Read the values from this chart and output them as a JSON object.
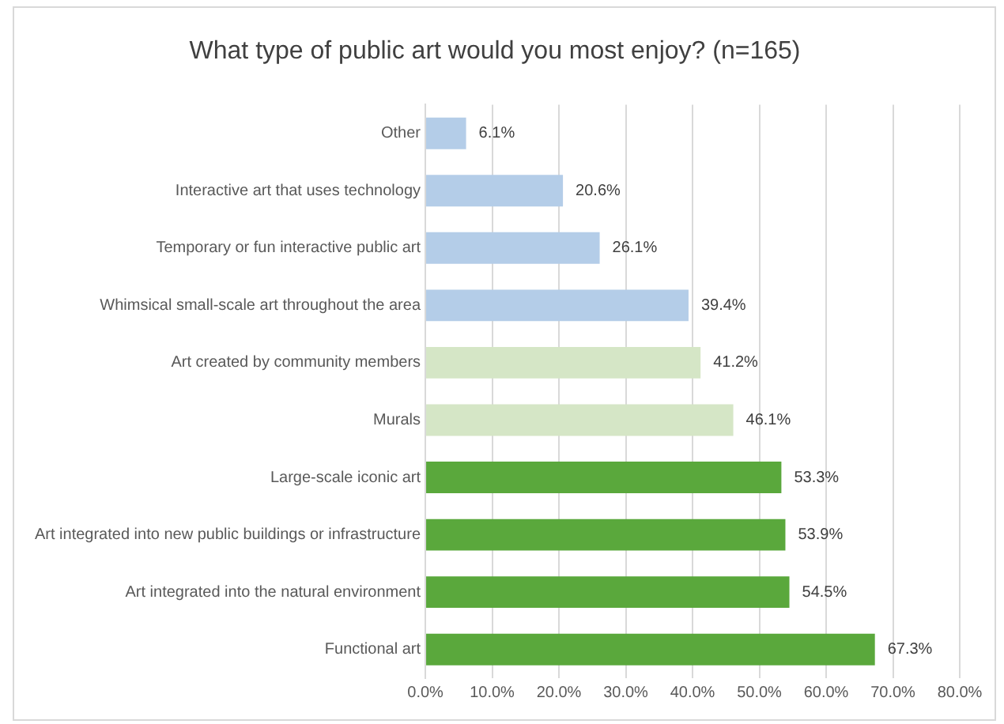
{
  "chart_data": {
    "type": "bar",
    "orientation": "horizontal",
    "title": "What type of public art would you most enjoy? (n=165)",
    "categories": [
      "Other",
      "Interactive art that uses technology",
      "Temporary or fun interactive public art",
      "Whimsical small-scale art throughout the area",
      "Art created by community members",
      "Murals",
      "Large-scale iconic art",
      "Art integrated into new public buildings or infrastructure",
      "Art integrated into the natural environment",
      "Functional art"
    ],
    "values": [
      6.1,
      20.6,
      26.1,
      39.4,
      41.2,
      46.1,
      53.3,
      53.9,
      54.5,
      67.3
    ],
    "colors": [
      "#b4cde8",
      "#b4cde8",
      "#b4cde8",
      "#b4cde8",
      "#d5e6c6",
      "#d5e6c6",
      "#5aa83c",
      "#5aa83c",
      "#5aa83c",
      "#5aa83c"
    ],
    "value_labels": [
      "6.1%",
      "20.6%",
      "26.1%",
      "39.4%",
      "41.2%",
      "46.1%",
      "53.3%",
      "53.9%",
      "54.5%",
      "67.3%"
    ],
    "xlim": [
      0,
      80
    ],
    "xticks": [
      {
        "value": 0,
        "label": "0.0%"
      },
      {
        "value": 10,
        "label": "10.0%"
      },
      {
        "value": 20,
        "label": "20.0%"
      },
      {
        "value": 30,
        "label": "30.0%"
      },
      {
        "value": 40,
        "label": "40.0%"
      },
      {
        "value": 50,
        "label": "50.0%"
      },
      {
        "value": 60,
        "label": "60.0%"
      },
      {
        "value": 70,
        "label": "70.0%"
      },
      {
        "value": 80,
        "label": "80.0%"
      }
    ],
    "grid": "x",
    "legend": false
  }
}
